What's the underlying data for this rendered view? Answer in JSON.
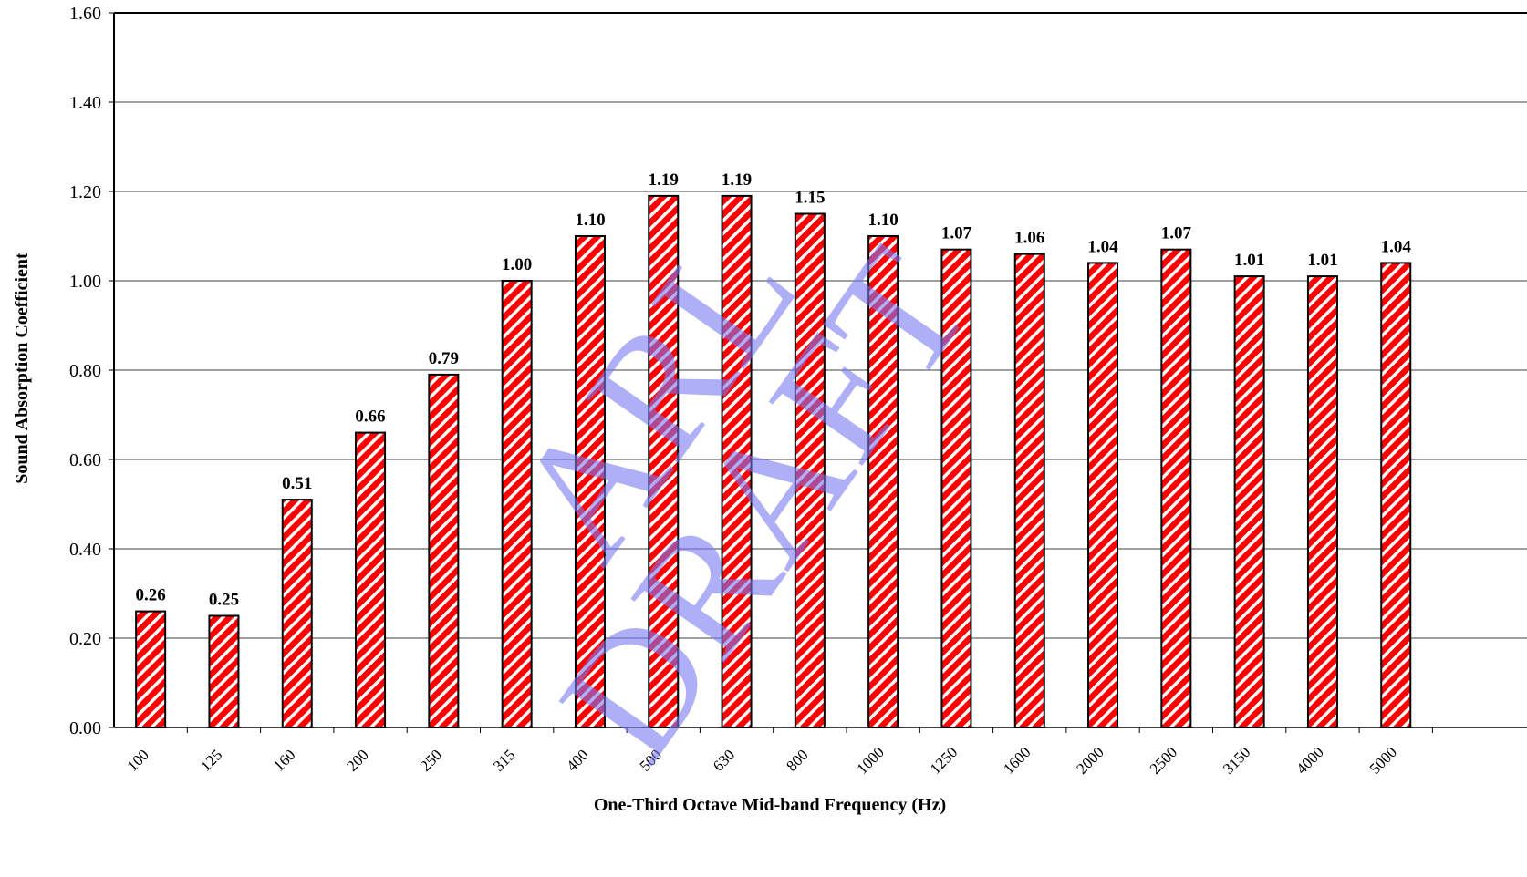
{
  "chart_data": {
    "type": "bar",
    "title": "",
    "xlabel": "One-Third Octave Mid-band Frequency (Hz)",
    "ylabel": "Sound Absorption Coefficient",
    "categories": [
      "100",
      "125",
      "160",
      "200",
      "250",
      "315",
      "400",
      "500",
      "630",
      "800",
      "1000",
      "1250",
      "1600",
      "2000",
      "2500",
      "3150",
      "4000",
      "5000"
    ],
    "values": [
      0.26,
      0.25,
      0.51,
      0.66,
      0.79,
      1.0,
      1.1,
      1.19,
      1.19,
      1.15,
      1.1,
      1.07,
      1.06,
      1.04,
      1.07,
      1.01,
      1.01,
      1.04
    ],
    "data_labels": [
      "0.26",
      "0.25",
      "0.51",
      "0.66",
      "0.79",
      "1.00",
      "1.10",
      "1.19",
      "1.19",
      "1.15",
      "1.10",
      "1.07",
      "1.06",
      "1.04",
      "1.07",
      "1.01",
      "1.01",
      "1.04"
    ],
    "ylim": [
      0,
      1.6
    ],
    "yticks": [
      "0.00",
      "0.20",
      "0.40",
      "0.60",
      "0.80",
      "1.00",
      "1.20",
      "1.40",
      "1.60"
    ],
    "grid": true,
    "legend": "none",
    "bar_color": "#ff0000",
    "bar_hatch_color": "#ffffff",
    "bar_outline_color": "#000000",
    "grid_color": "#000000"
  },
  "watermark": {
    "line1": "ARL",
    "line2": "DRAFT",
    "color": "#7b7bf2"
  }
}
